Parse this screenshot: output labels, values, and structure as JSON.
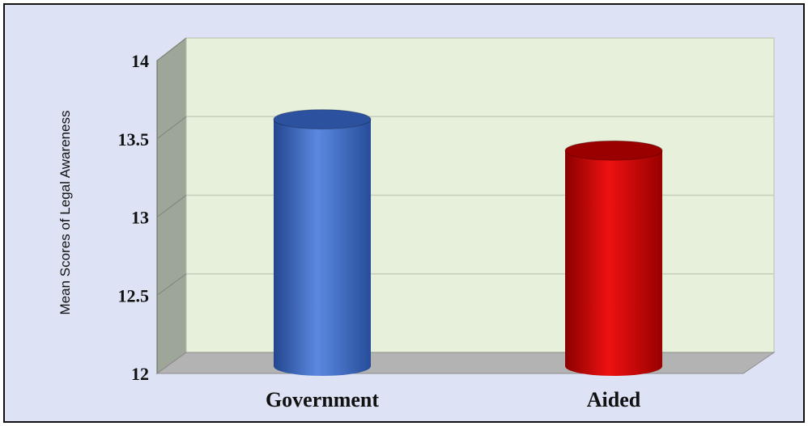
{
  "chart_data": {
    "type": "bar",
    "style": "3d-cylinder",
    "categories": [
      "Government",
      "Aided"
    ],
    "values": [
      13.78,
      13.58
    ],
    "ylabel": "Mean Scores of Legal Awareness",
    "xlabel": "",
    "ylim": [
      12,
      14
    ],
    "yticks": [
      "12",
      "12.5",
      "13",
      "13.5",
      "14"
    ],
    "grid": true,
    "legend": "none",
    "colors": {
      "bars": [
        "#3d6cc8",
        "#cc0000"
      ],
      "plot_wall": "#e6f0da",
      "side_wall": "#9ea599",
      "floor": "#b3b3b3",
      "background": "#dde2f4"
    }
  }
}
